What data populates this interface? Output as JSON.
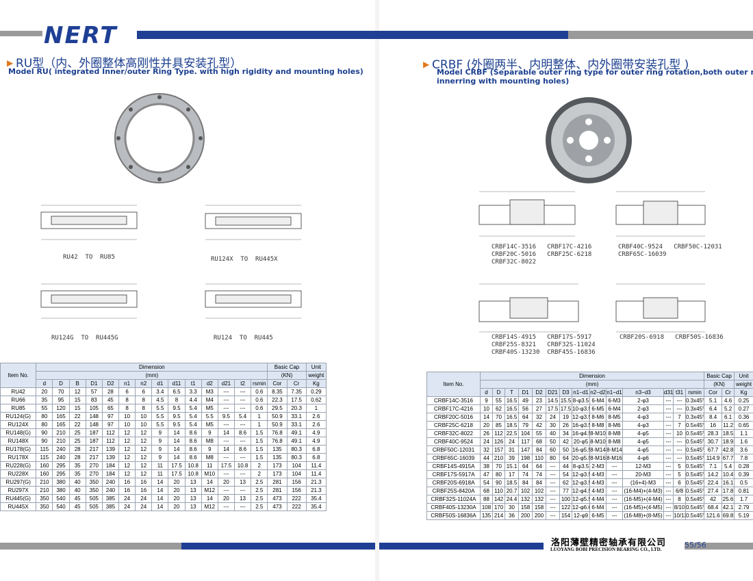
{
  "header": {
    "logo": "NERT"
  },
  "left": {
    "title": "RU型（内、外圈整体高刚性并具安装孔型）",
    "subtitle": "Model RU( integrated  Inner/outer Ring Type. with high rigidity and mounting holes)",
    "captions": [
      "RU42  TO  RU85",
      "RU124X  TO  RU445X",
      "RU124G  TO  RU445G",
      "RU124  TO  RU445"
    ],
    "table": {
      "header": {
        "item": "Item No.",
        "dimension": "Dimension",
        "mm": "(mm)",
        "basic": "Basic Cap",
        "kn": "(KN)",
        "unit": "Unit",
        "weight": "weight",
        "columns": [
          "d",
          "D",
          "B",
          "D1",
          "D2",
          "n1",
          "n2",
          "d1",
          "d11",
          "t1",
          "d2",
          "d21",
          "t2",
          "rsmin",
          "Cor",
          "Cr",
          "Kg"
        ]
      },
      "rows": [
        [
          "RU42",
          "20",
          "70",
          "12",
          "57",
          "28",
          "6",
          "6",
          "3.4",
          "6.5",
          "3.3",
          "M3",
          "---",
          "---",
          "0.6",
          "8.35",
          "7.35",
          "0.29"
        ],
        [
          "RU66",
          "35",
          "95",
          "15",
          "83",
          "45",
          "8",
          "8",
          "4.5",
          "8",
          "4.4",
          "M4",
          "---",
          "---",
          "0.6",
          "22.3",
          "17.5",
          "0.62"
        ],
        [
          "RU85",
          "55",
          "120",
          "15",
          "105",
          "65",
          "8",
          "8",
          "5.5",
          "9.5",
          "5.4",
          "M5",
          "---",
          "---",
          "0.6",
          "29.5",
          "20.3",
          "1"
        ],
        [
          "RU124(G)",
          "80",
          "165",
          "22",
          "148",
          "97",
          "10",
          "10",
          "5.5",
          "9.5",
          "5.4",
          "5.5",
          "9.5",
          "5.4",
          "1",
          "50.9",
          "33.1",
          "2.6"
        ],
        [
          "RU124X",
          "80",
          "165",
          "22",
          "148",
          "97",
          "10",
          "10",
          "5.5",
          "9.5",
          "5.4",
          "M5",
          "---",
          "---",
          "1",
          "50.9",
          "33.1",
          "2.6"
        ],
        [
          "RU148(G)",
          "90",
          "210",
          "25",
          "187",
          "112",
          "12",
          "12",
          "9",
          "14",
          "8.6",
          "9",
          "14",
          "8.6",
          "1.5",
          "76.8",
          "49.1",
          "4.9"
        ],
        [
          "RU148X",
          "90",
          "210",
          "25",
          "187",
          "112",
          "12",
          "12",
          "9",
          "14",
          "8.6",
          "M8",
          "---",
          "---",
          "1.5",
          "76.8",
          "49.1",
          "4.9"
        ],
        [
          "RU178(G)",
          "115",
          "240",
          "28",
          "217",
          "139",
          "12",
          "12",
          "9",
          "14",
          "8.6",
          "9",
          "14",
          "8.6",
          "1.5",
          "135",
          "80.3",
          "6.8"
        ],
        [
          "RU178X",
          "115",
          "240",
          "28",
          "217",
          "139",
          "12",
          "12",
          "9",
          "14",
          "8.6",
          "M8",
          "---",
          "---",
          "1.5",
          "135",
          "80.3",
          "6.8"
        ],
        [
          "RU228(G)",
          "160",
          "295",
          "35",
          "270",
          "184",
          "12",
          "12",
          "11",
          "17.5",
          "10.8",
          "11",
          "17.5",
          "10.8",
          "2",
          "173",
          "104",
          "11.4"
        ],
        [
          "RU228X",
          "160",
          "295",
          "35",
          "270",
          "184",
          "12",
          "12",
          "11",
          "17.5",
          "10.8",
          "M10",
          "---",
          "---",
          "2",
          "173",
          "104",
          "11.4"
        ],
        [
          "RU297(G)",
          "210",
          "380",
          "40",
          "350",
          "240",
          "16",
          "16",
          "14",
          "20",
          "13",
          "14",
          "20",
          "13",
          "2.5",
          "281",
          "156",
          "21.3"
        ],
        [
          "RU297X",
          "210",
          "380",
          "40",
          "350",
          "240",
          "16",
          "16",
          "14",
          "20",
          "13",
          "M12",
          "---",
          "---",
          "2.5",
          "281",
          "156",
          "21.3"
        ],
        [
          "RU445(G)",
          "350",
          "540",
          "45",
          "505",
          "385",
          "24",
          "24",
          "14",
          "20",
          "13",
          "14",
          "20",
          "13",
          "2.5",
          "473",
          "222",
          "35.4"
        ],
        [
          "RU445X",
          "350",
          "540",
          "45",
          "505",
          "385",
          "24",
          "24",
          "14",
          "20",
          "13",
          "M12",
          "---",
          "---",
          "2.5",
          "473",
          "222",
          "35.4"
        ]
      ]
    }
  },
  "right": {
    "title": "CRBF (外圈两半、内明整体、内外圈带安装孔型 )",
    "subtitle": [
      "Model CRBF (Separable outer ring type for outer ring rotation,both outer ring and",
      "innerring with mounting holes)"
    ],
    "captions": [
      [
        "CRBF14C-3516   CRBF17C-4216",
        "CRBF20C-5016   CRBF25C-6218",
        "CRBF32C-8022"
      ],
      [
        "CRBF40C-9524   CRBF50C-12031",
        "CRBF65C-16039"
      ],
      [
        "CRBF14S-4915   CRBF17S-5917",
        "CRBF25S-8321   CRBF32S-11024",
        "CRBF40S-13230  CRBF45S-16836"
      ],
      [
        "CRBF20S-6918   CRBF50S-16836"
      ]
    ],
    "table": {
      "header": {
        "item": "Item No.",
        "dimension": "Dimension",
        "mm": "(mm)",
        "basic": "Basic Cap",
        "kn": "(KN)",
        "unit": "Unit",
        "weight": "weight",
        "columns": [
          "d",
          "D",
          "T",
          "D1",
          "D2",
          "D21",
          "D3",
          "n1−d1",
          "n2−d2",
          "n1−d1",
          "n3−d3",
          "d31",
          "t31",
          "rsmin",
          "Cor",
          "Cr",
          "Kg"
        ]
      },
      "rows": [
        [
          "CRBF14C-3516",
          "9",
          "55",
          "16.5",
          "49",
          "23",
          "14.5",
          "15.5",
          "8-φ3.5",
          "6-M4",
          "6-M3",
          "2-φ3",
          "---",
          "---",
          "0.3x45°",
          "5.1",
          "4.6",
          "0.25"
        ],
        [
          "CRBF17C-4216",
          "10",
          "62",
          "16.5",
          "56",
          "27",
          "17.5",
          "17.5",
          "10-φ3.5",
          "6-M5",
          "6-M4",
          "2-φ3",
          "---",
          "---",
          "0.3x45°",
          "6.4",
          "5.2",
          "0.27"
        ],
        [
          "CRBF20C-5016",
          "14",
          "70",
          "16.5",
          "64",
          "32",
          "24",
          "19",
          "12-φ3.5",
          "8-M6",
          "8-M5",
          "4-φ3",
          "---",
          "7",
          "0.3x45°",
          "8.4",
          "6.1",
          "0.36"
        ],
        [
          "CRBF25C-6218",
          "20",
          "85",
          "18.5",
          "79",
          "42",
          "30",
          "26",
          "16-φ3.5",
          "8-M8",
          "8-M6",
          "4-φ3",
          "---",
          "7",
          "0.5x45°",
          "16",
          "11.2",
          "0.65"
        ],
        [
          "CRBF32C-8022",
          "26",
          "112",
          "22.5",
          "104",
          "55",
          "40",
          "34",
          "16-φ4.5",
          "8-M10",
          "8-M8",
          "4-φ5",
          "---",
          "10",
          "0.5x45°",
          "28.3",
          "18.5",
          "1.1"
        ],
        [
          "CRBF40C-9524",
          "24",
          "126",
          "24",
          "117",
          "68",
          "50",
          "42",
          "20-φ5",
          "8-M10",
          "8-M8",
          "4-φ5",
          "---",
          "---",
          "0.5x45°",
          "30.7",
          "18.9",
          "1.6"
        ],
        [
          "CRBF50C-12031",
          "32",
          "157",
          "31",
          "147",
          "84",
          "60",
          "50",
          "16-φ5.5",
          "8-M14",
          "8-M14",
          "4-φ5",
          "---",
          "---",
          "0.5x45°",
          "67.7",
          "42.8",
          "3.6"
        ],
        [
          "CRBF65C-16039",
          "44",
          "210",
          "39",
          "198",
          "110",
          "80",
          "64",
          "20-φ5.5",
          "8-M16",
          "8-M16",
          "4-φ6",
          "---",
          "---",
          "0.5x45°",
          "114.9",
          "67.7",
          "7.8"
        ],
        [
          "CRBF14S-4915A",
          "38",
          "70",
          "15.1",
          "64",
          "64",
          "---",
          "44",
          "8-φ3.5",
          "2-M3",
          "---",
          "12-M3",
          "---",
          "5",
          "0.5x45°",
          "7.1",
          "5.4",
          "0.28"
        ],
        [
          "CRBF17S-5917A",
          "47",
          "80",
          "17",
          "74",
          "74",
          "---",
          "54",
          "12-φ3.5",
          "4-M3",
          "---",
          "20-M3",
          "---",
          "5",
          "0.5x45°",
          "14.2",
          "10.4",
          "0.39"
        ],
        [
          "CRBF20S-6918A",
          "54",
          "90",
          "18.5",
          "84",
          "84",
          "---",
          "62",
          "12-φ3.5",
          "4-M3",
          "---",
          "(16+4)-M3",
          "---",
          "6",
          "0.5x45°",
          "22.4",
          "16.1",
          "0.5"
        ],
        [
          "CRBF25S-8420A",
          "68",
          "110",
          "20.7",
          "102",
          "102",
          "---",
          "77",
          "12-φ4.5",
          "4-M3",
          "---",
          "(16-M4)+(4-M3)",
          "---",
          "6/8",
          "0.5x45°",
          "27.4",
          "17.8",
          "0.81"
        ],
        [
          "CRBF32S-11024A",
          "88",
          "142",
          "24.4",
          "132",
          "132",
          "---",
          "100",
          "12-φ5.5",
          "4-M4",
          "---",
          "(16-M5)+(4-M4)",
          "---",
          "8",
          "0.5x45°",
          "42",
          "25.6",
          "1.7"
        ],
        [
          "CRBF40S-13230A",
          "108",
          "170",
          "30",
          "158",
          "158",
          "---",
          "122",
          "12-φ6.6",
          "6-M4",
          "---",
          "(16-M5)+(4-M5)",
          "---",
          "8/10",
          "0.5x45°",
          "68.4",
          "42.1",
          "2.79"
        ],
        [
          "CRBF50S-16836A",
          "135",
          "214",
          "36",
          "200",
          "200",
          "---",
          "154",
          "12-φ9",
          "6-M5",
          "---",
          "(16-M8)+(8-M5)",
          "---",
          "10/12",
          "0.5x45°",
          "121.6",
          "69.8",
          "5.19"
        ]
      ]
    }
  },
  "footer": {
    "company_cn": "洛阳薄壁精密轴承有限公司",
    "company_en": "LUOYANG BOBI PRECISION BEARING CO., LTD.",
    "page": "55/56"
  }
}
